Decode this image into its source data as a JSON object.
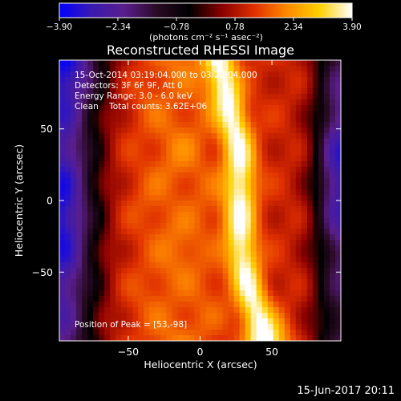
{
  "colors": {
    "background": "#000000",
    "text": "#ffffff",
    "colormap": [
      "#0000ff",
      "#3a1ab0",
      "#5a1e8c",
      "#2a0a24",
      "#000000",
      "#8a0000",
      "#e03000",
      "#ff8a00",
      "#ffd000",
      "#ffffff"
    ]
  },
  "chart_data": {
    "type": "heatmap",
    "title": "Reconstructed RHESSI Image",
    "xlabel": "Heliocentric X (arcsec)",
    "ylabel": "Heliocentric Y (arcsec)",
    "xlim": [
      -98,
      98
    ],
    "ylim": [
      -98,
      98
    ],
    "xticks": [
      {
        "value": -50,
        "label": "−50"
      },
      {
        "value": 0,
        "label": "0"
      },
      {
        "value": 50,
        "label": "50"
      }
    ],
    "yticks": [
      {
        "value": 50,
        "label": "50"
      },
      {
        "value": 0,
        "label": "0"
      },
      {
        "value": -50,
        "label": "−50"
      }
    ],
    "annotations": [
      "15-Oct-2014 03:19:04.000 to 03:20:04.000",
      "Detectors: 3F 6F 9F, Att 0",
      "Energy Range: 3.0 - 6.0 keV",
      "Clean    Total counts: 3.62E+06"
    ],
    "peak_label": "Position of Peak = [53,-98]",
    "peak": [
      53,
      -98
    ],
    "colorbar": {
      "range": [
        -3.9,
        3.9
      ],
      "ticks": [
        {
          "value": -3.9,
          "label": "−3.90"
        },
        {
          "value": -2.34,
          "label": "−2.34"
        },
        {
          "value": -0.78,
          "label": "−0.78"
        },
        {
          "value": 0.78,
          "label": "0.78"
        },
        {
          "value": 2.34,
          "label": "2.34"
        },
        {
          "value": 3.9,
          "label": "3.90"
        }
      ],
      "unit_label": "(photons cm⁻² s⁻¹ asec⁻²)"
    }
  },
  "footer": {
    "date": "15-Jun-2017 20:11"
  }
}
